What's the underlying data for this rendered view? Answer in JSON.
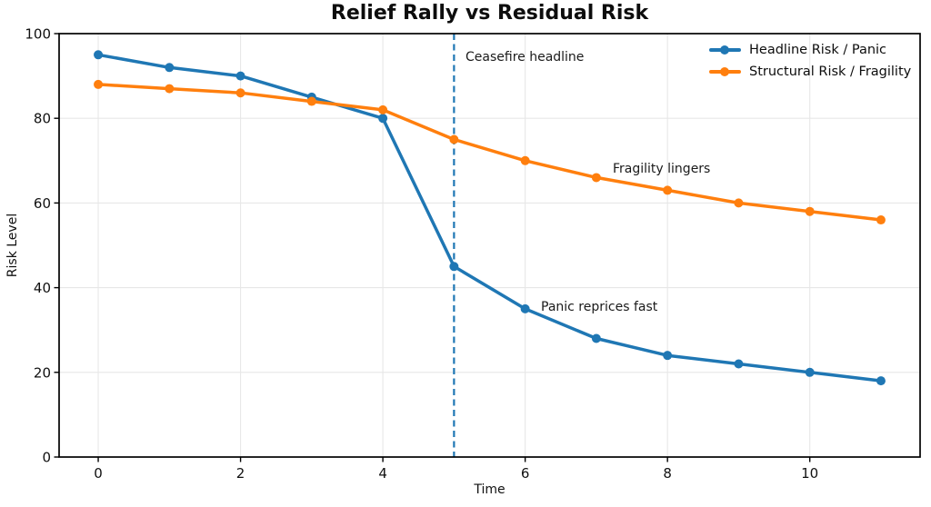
{
  "chart_data": {
    "type": "line",
    "title": "Relief Rally vs Residual Risk",
    "xlabel": "Time",
    "ylabel": "Risk Level",
    "x": [
      0,
      1,
      2,
      3,
      4,
      5,
      6,
      7,
      8,
      9,
      10,
      11
    ],
    "series": [
      {
        "name": "Headline Risk / Panic",
        "color": "#1f77b4",
        "marker": "circle",
        "values": [
          95,
          92,
          90,
          85,
          80,
          45,
          35,
          28,
          24,
          22,
          20,
          18
        ]
      },
      {
        "name": "Structural Risk / Fragility",
        "color": "#ff7f0e",
        "marker": "circle",
        "values": [
          88,
          87,
          86,
          84,
          82,
          75,
          70,
          66,
          63,
          60,
          58,
          56
        ]
      }
    ],
    "xlim": [
      -0.55,
      11.55
    ],
    "ylim": [
      0,
      100
    ],
    "xticks": [
      0,
      2,
      4,
      6,
      8,
      10
    ],
    "yticks": [
      0,
      20,
      40,
      60,
      80,
      100
    ],
    "grid": true,
    "grid_color": "#e7e7e7",
    "spine_color": "#000000",
    "tick_label_color": "#111111",
    "legend_position": "upper right",
    "vline": {
      "x": 5,
      "color": "#1f77b4",
      "style": "dashed"
    },
    "annotations": [
      {
        "text": "Ceasefire headline",
        "x": 5.12,
        "y": 94
      },
      {
        "text": "Fragility lingers",
        "x": 7.18,
        "y": 68
      },
      {
        "text": "Panic reprices fast",
        "x": 6.18,
        "y": 35
      }
    ]
  }
}
